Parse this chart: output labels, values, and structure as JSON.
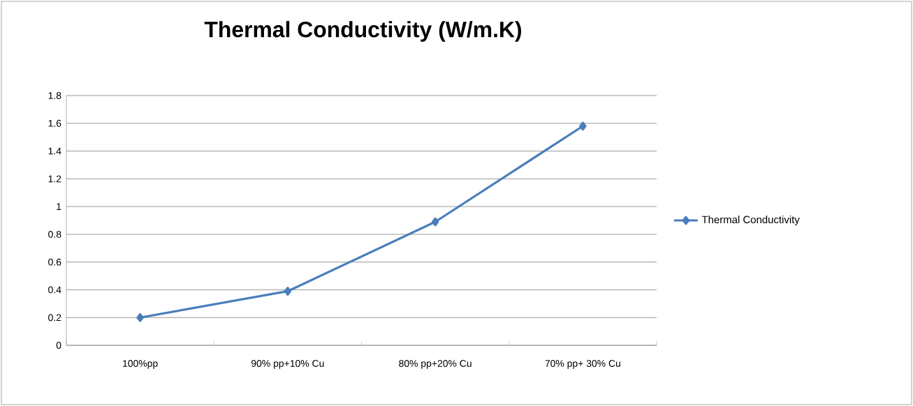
{
  "chart_data": {
    "type": "line",
    "title": "Thermal Conductivity (W/m.K)",
    "categories": [
      "100%pp",
      "90%  pp+10% Cu",
      "80%  pp+20% Cu",
      "70%  pp+ 30% Cu"
    ],
    "series": [
      {
        "name": "Thermal Conductivity",
        "color": "#4a7ebb",
        "values": [
          0.2,
          0.39,
          0.89,
          1.58
        ]
      }
    ],
    "ylim": [
      0,
      1.8
    ],
    "yticks": [
      0,
      0.2,
      0.4,
      0.6,
      0.8,
      1,
      1.2,
      1.4,
      1.6,
      1.8
    ],
    "grid": "y",
    "legend": "right",
    "marker": "diamond",
    "line_style": "solid"
  }
}
